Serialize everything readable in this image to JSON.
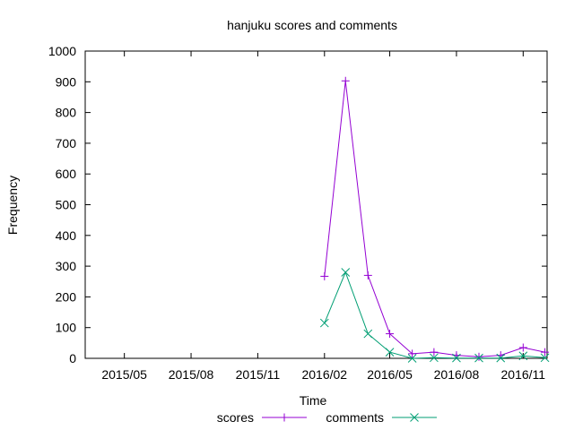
{
  "chart_data": {
    "type": "line",
    "title": "hanjuku scores and comments",
    "xlabel": "Time",
    "ylabel": "Frequency",
    "ylim": [
      0,
      1000
    ],
    "yticks": [
      0,
      100,
      200,
      300,
      400,
      500,
      600,
      700,
      800,
      900,
      1000
    ],
    "xlim": [
      "2015-03-08",
      "2016-12-04"
    ],
    "xticks": [
      {
        "date": "2015-05-01",
        "label": "2015/05"
      },
      {
        "date": "2015-08-01",
        "label": "2015/08"
      },
      {
        "date": "2015-11-01",
        "label": "2015/11"
      },
      {
        "date": "2016-02-01",
        "label": "2016/02"
      },
      {
        "date": "2016-05-01",
        "label": "2016/05"
      },
      {
        "date": "2016-08-01",
        "label": "2016/08"
      },
      {
        "date": "2016-11-01",
        "label": "2016/11"
      }
    ],
    "grid": false,
    "legend": "bottom",
    "x": [
      "2016-02-01",
      "2016-03-01",
      "2016-04-01",
      "2016-05-01",
      "2016-06-01",
      "2016-07-01",
      "2016-08-01",
      "2016-09-01",
      "2016-10-01",
      "2016-11-01",
      "2016-12-01"
    ],
    "series": [
      {
        "name": "scores",
        "color": "#9400d3",
        "marker": "plus",
        "values": [
          267,
          903,
          270,
          80,
          15,
          20,
          10,
          5,
          10,
          35,
          20
        ]
      },
      {
        "name": "comments",
        "color": "#009e73",
        "marker": "cross",
        "values": [
          115,
          280,
          80,
          20,
          0,
          2,
          1,
          1,
          1,
          8,
          2
        ]
      }
    ]
  }
}
